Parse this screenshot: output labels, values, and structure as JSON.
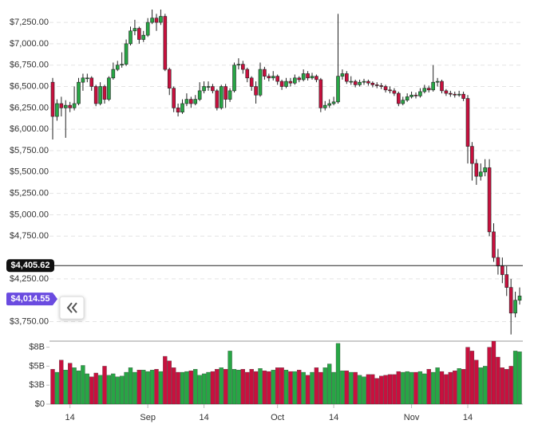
{
  "chart_data": {
    "type": "candlestick",
    "ylim": [
      3550,
      7465
    ],
    "yticks": [
      {
        "value": 3750,
        "label": "$3,750.00"
      },
      {
        "value": 4250,
        "label": "$4,250.00"
      },
      {
        "value": 4750,
        "label": "$4,750.00"
      },
      {
        "value": 5000,
        "label": "$5,000.00"
      },
      {
        "value": 5250,
        "label": "$5,250.00"
      },
      {
        "value": 5500,
        "label": "$5,500.00"
      },
      {
        "value": 5750,
        "label": "$5,750.00"
      },
      {
        "value": 6000,
        "label": "$6,000.00"
      },
      {
        "value": 6250,
        "label": "$6,250.00"
      },
      {
        "value": 6500,
        "label": "$6,500.00"
      },
      {
        "value": 6750,
        "label": "$6,750.00"
      },
      {
        "value": 7000,
        "label": "$7,000.00"
      },
      {
        "value": 7250,
        "label": "$7,250.00"
      }
    ],
    "xticks": [
      {
        "value": 4,
        "label": "14"
      },
      {
        "value": 22,
        "label": "Sep"
      },
      {
        "value": 35,
        "label": "14"
      },
      {
        "value": 52,
        "label": "Oct"
      },
      {
        "value": 65,
        "label": "14"
      },
      {
        "value": 83,
        "label": "Nov"
      },
      {
        "value": 96,
        "label": "14"
      }
    ],
    "grid": true,
    "up_color": "#27a645",
    "down_color": "#c8103e",
    "series": {
      "open": [
        6550,
        6150,
        6300,
        6250,
        6280,
        6250,
        6300,
        6550,
        6600,
        6600,
        6500,
        6300,
        6500,
        6350,
        6600,
        6700,
        6750,
        6760,
        7000,
        7150,
        7180,
        7050,
        7100,
        7250,
        7300,
        7250,
        7320,
        6700,
        6480,
        6250,
        6200,
        6300,
        6350,
        6300,
        6350,
        6450,
        6500,
        6500,
        6450,
        6250,
        6500,
        6350,
        6450,
        6750,
        6760,
        6700,
        6600,
        6500,
        6400,
        6700,
        6620,
        6600,
        6620,
        6560,
        6500,
        6560,
        6540,
        6600,
        6580,
        6650,
        6600,
        6620,
        6580,
        6250,
        6280,
        6300,
        6320,
        6620,
        6650,
        6560,
        6560,
        6520,
        6550,
        6560,
        6540,
        6520,
        6510,
        6500,
        6460,
        6450,
        6420,
        6300,
        6340,
        6380,
        6400,
        6390,
        6440,
        6480,
        6460,
        6550,
        6560,
        6450,
        6420,
        6410,
        6400,
        6410,
        6360,
        5800,
        5600,
        5450,
        5500,
        5550,
        4800,
        4500,
        4400,
        4300,
        4150,
        3850,
        4000
      ],
      "high": [
        6600,
        6350,
        6380,
        6340,
        6320,
        6500,
        6600,
        6650,
        6650,
        6620,
        6520,
        6550,
        6520,
        6620,
        6780,
        6800,
        6900,
        7050,
        7200,
        7280,
        7200,
        7150,
        7300,
        7400,
        7350,
        7400,
        7350,
        6720,
        6500,
        6300,
        6350,
        6420,
        6380,
        6400,
        6550,
        6560,
        6560,
        6530,
        6470,
        6520,
        6530,
        6480,
        6780,
        6830,
        6800,
        6720,
        6620,
        6560,
        6780,
        6730,
        6650,
        6680,
        6640,
        6580,
        6600,
        6600,
        6640,
        6620,
        6700,
        6680,
        6660,
        6640,
        6600,
        6330,
        6350,
        6380,
        7350,
        6700,
        6680,
        6620,
        6580,
        6580,
        6590,
        6580,
        6560,
        6550,
        6540,
        6520,
        6500,
        6480,
        6440,
        6380,
        6420,
        6440,
        6430,
        6480,
        6520,
        6510,
        6750,
        6600,
        6580,
        6470,
        6450,
        6440,
        6450,
        6440,
        6400,
        5850,
        5650,
        5600,
        5650,
        5650,
        4900,
        4600,
        4500,
        4400,
        4250,
        4100,
        4150
      ],
      "low": [
        5880,
        6100,
        6150,
        5900,
        6200,
        6220,
        6280,
        6450,
        6550,
        6450,
        6270,
        6280,
        6300,
        6330,
        6580,
        6680,
        6720,
        6740,
        6980,
        7100,
        7000,
        7020,
        7080,
        7230,
        7150,
        7220,
        6680,
        6400,
        6200,
        6150,
        6180,
        6270,
        6250,
        6280,
        6330,
        6420,
        6450,
        6420,
        6220,
        6230,
        6250,
        6320,
        6430,
        6700,
        6650,
        6550,
        6450,
        6300,
        6380,
        6580,
        6560,
        6570,
        6520,
        6460,
        6480,
        6500,
        6520,
        6550,
        6560,
        6570,
        6580,
        6550,
        6200,
        6220,
        6250,
        6280,
        6300,
        6580,
        6530,
        6520,
        6490,
        6500,
        6520,
        6510,
        6490,
        6480,
        6470,
        6430,
        6420,
        6390,
        6270,
        6280,
        6320,
        6360,
        6360,
        6370,
        6420,
        6430,
        6440,
        6500,
        6420,
        6390,
        6380,
        6370,
        6380,
        6330,
        5600,
        5400,
        5350,
        5400,
        5450,
        4750,
        4450,
        4300,
        4200,
        4050,
        3600,
        3800,
        3950
      ],
      "close": [
        6150,
        6300,
        6250,
        6280,
        6250,
        6300,
        6550,
        6600,
        6600,
        6500,
        6300,
        6500,
        6350,
        6600,
        6700,
        6750,
        6760,
        7000,
        7150,
        7180,
        7050,
        7100,
        7250,
        7300,
        7250,
        7320,
        6700,
        6480,
        6250,
        6200,
        6300,
        6350,
        6300,
        6350,
        6450,
        6500,
        6500,
        6450,
        6250,
        6500,
        6350,
        6450,
        6750,
        6760,
        6700,
        6600,
        6500,
        6400,
        6700,
        6620,
        6600,
        6620,
        6560,
        6500,
        6560,
        6540,
        6600,
        6580,
        6650,
        6600,
        6620,
        6580,
        6250,
        6280,
        6300,
        6320,
        6620,
        6650,
        6560,
        6560,
        6520,
        6550,
        6560,
        6540,
        6520,
        6510,
        6500,
        6460,
        6450,
        6420,
        6300,
        6340,
        6380,
        6400,
        6390,
        6440,
        6480,
        6460,
        6550,
        6560,
        6450,
        6420,
        6410,
        6400,
        6410,
        6360,
        5800,
        5600,
        5450,
        5500,
        5550,
        4800,
        4500,
        4400,
        4300,
        4150,
        3850,
        4000,
        4050
      ]
    },
    "volume": {
      "ylim": [
        0,
        8.3
      ],
      "yticks": [
        {
          "value": 0,
          "label": "$0"
        },
        {
          "value": 2.5,
          "label": "$3B"
        },
        {
          "value": 5,
          "label": "$5B"
        },
        {
          "value": 7.5,
          "label": "$8B"
        }
      ],
      "values": [
        4.6,
        4.2,
        5.8,
        4.5,
        5.4,
        4.8,
        4.4,
        5.1,
        4.0,
        3.6,
        4.1,
        3.8,
        5.0,
        3.8,
        4.0,
        3.6,
        3.7,
        4.2,
        4.8,
        4.2,
        4.5,
        4.5,
        4.3,
        4.5,
        4.6,
        4.3,
        6.3,
        5.7,
        4.8,
        4.2,
        4.2,
        4.3,
        4.4,
        4.6,
        3.8,
        4.0,
        4.2,
        4.3,
        4.6,
        4.8,
        4.6,
        7.0,
        4.6,
        4.5,
        4.6,
        4.2,
        4.6,
        4.3,
        4.7,
        4.4,
        4.3,
        4.5,
        4.8,
        4.8,
        4.5,
        4.3,
        4.3,
        4.5,
        4.2,
        3.8,
        4.2,
        4.8,
        4.2,
        4.8,
        5.3,
        4.2,
        8.0,
        4.4,
        4.4,
        4.2,
        4.2,
        3.8,
        3.6,
        3.9,
        3.9,
        3.4,
        3.7,
        3.8,
        3.9,
        3.9,
        4.3,
        4.2,
        4.3,
        4.2,
        4.2,
        4.3,
        4.0,
        4.6,
        4.2,
        4.8,
        4.3,
        3.9,
        4.2,
        4.4,
        4.7,
        4.6,
        7.5,
        7.0,
        5.8,
        4.8,
        5.0,
        7.5,
        8.3,
        6.2,
        4.8,
        4.6,
        5.0,
        7.0,
        6.9
      ]
    },
    "price_line": {
      "value": 4405.62,
      "label": "$4,405.62"
    },
    "marker": {
      "value": 4014.55,
      "label": "$4,014.55"
    }
  }
}
